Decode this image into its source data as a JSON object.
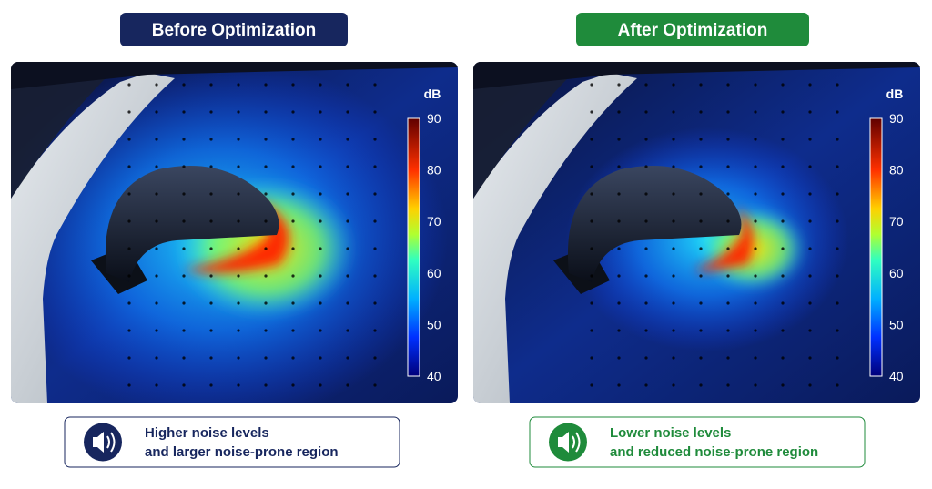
{
  "panels": [
    {
      "title": "Before Optimization",
      "unit": "dB",
      "colorbar_ticks": [
        90,
        80,
        70,
        60,
        50,
        40
      ],
      "caption_lines": [
        "Higher noise levels",
        "and larger noise-prone region"
      ]
    },
    {
      "title": "After Optimization",
      "unit": "dB",
      "colorbar_ticks": [
        90,
        80,
        70,
        60,
        50,
        40
      ],
      "caption_lines": [
        "Lower noise levels",
        "and reduced noise-prone region"
      ]
    }
  ]
}
